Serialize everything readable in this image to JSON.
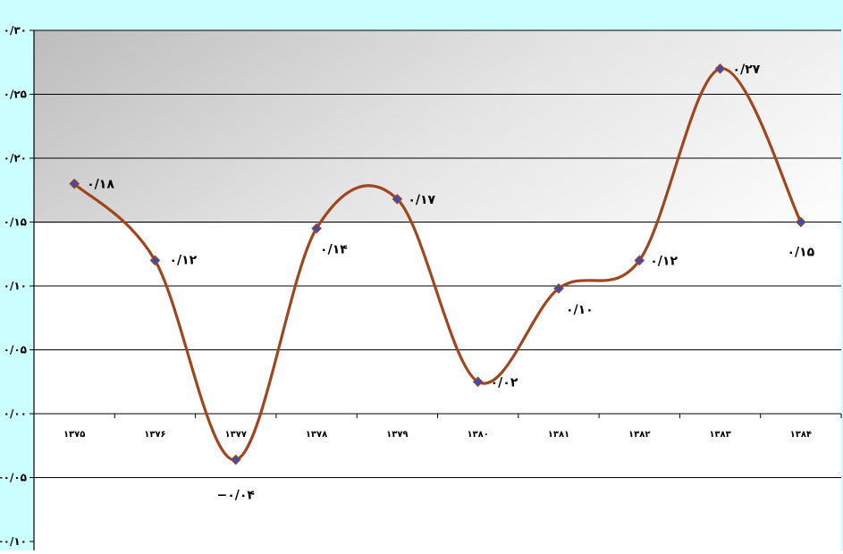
{
  "chart_data": {
    "type": "line",
    "title": "",
    "xlabel": "",
    "ylabel": "",
    "categories": [
      "۱۳۷۵",
      "۱۳۷۶",
      "۱۳۷۷",
      "۱۳۷۸",
      "۱۳۷۹",
      "۱۳۸۰",
      "۱۳۸۱",
      "۱۳۸۲",
      "۱۳۸۳",
      "۱۳۸۴"
    ],
    "series": [
      {
        "values": [
          0.18,
          0.12,
          -0.036,
          0.145,
          0.168,
          0.025,
          0.098,
          0.12,
          0.27,
          0.15
        ],
        "data_labels": [
          "۰/۱۸",
          "۰/۱۲",
          "−۰/۰۴",
          "۰/۱۴",
          "۰/۱۷",
          "۰/۰۲",
          "۰/۱۰",
          "۰/۱۲",
          "۰/۲۷",
          "۰/۱۵"
        ],
        "color": "#A0461E",
        "marker_color": "#3B4BB8"
      }
    ],
    "ylim": [
      -0.1,
      0.3
    ],
    "y_ticks": [
      -0.1,
      -0.05,
      0,
      0.05,
      0.1,
      0.15,
      0.2,
      0.25,
      0.3
    ],
    "y_tick_labels": [
      "−۰/۱۰",
      "−۰/۰۵",
      "۰/۰۰",
      "۰/۰۵",
      "۰/۱۰",
      "۰/۱۵",
      "۰/۲۰",
      "۰/۲۵",
      "۰/۳۰"
    ],
    "grid": true,
    "smooth": true,
    "legend": "none",
    "colors": {
      "background": "#CCFFFF",
      "plot_gradient_start": "#BDBDBD",
      "plot_gradient_end": "#FFFFFF",
      "axis": "#000000"
    }
  }
}
